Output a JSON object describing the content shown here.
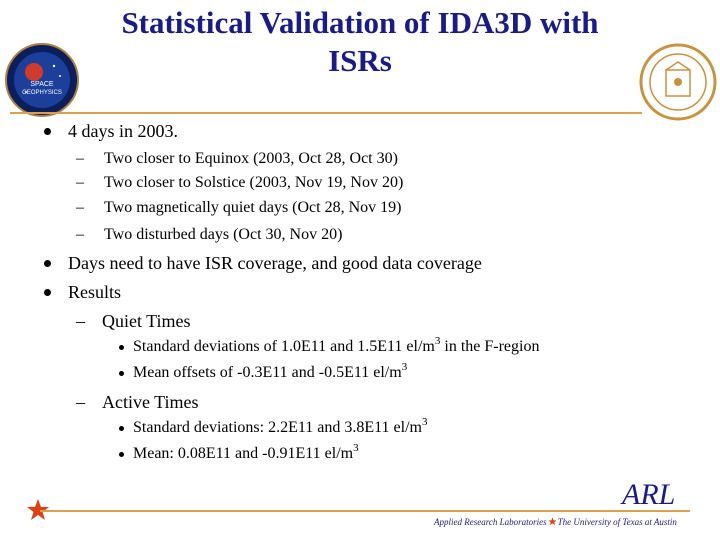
{
  "title": {
    "line1": "Statistical Validation of IDA3D with",
    "line2": "ISRs"
  },
  "logos": {
    "left_icon": "space-geophysics-logo",
    "right_icon": "ut-austin-seal",
    "left_text_line1": "SPACE",
    "left_text_line2": "GEOPHYSICS"
  },
  "bullets": {
    "b1": "4 days in 2003.",
    "b1_sub": [
      "Two closer to Equinox (2003, Oct 28, Oct 30)",
      "Two closer to Solstice (2003, Nov 19, Nov 20)",
      "Two magnetically quiet days (Oct 28, Nov 19)",
      "Two disturbed days (Oct 30, Nov 20)"
    ],
    "b2": "Days need to have ISR coverage, and good data coverage",
    "b3": "Results",
    "quiet": {
      "label": "Quiet Times",
      "item1_pre": "Standard deviations of 1.0E11 and 1.5E11 el/m",
      "item1_sup": "3",
      "item1_post": " in the F-region",
      "item2_pre": "Mean offsets of -0.3E11 and -0.5E11 el/m",
      "item2_sup": "3"
    },
    "active": {
      "label": "Active Times",
      "item1_pre": "Standard deviations: 2.2E11 and 3.8E11 el/m",
      "item1_sup": "3",
      "item2_pre": "Mean: 0.08E11 and -0.91E11 el/m",
      "item2_sup": "3"
    },
    "dash_glyph": "–"
  },
  "footer": {
    "arl": "ARL",
    "left": "Applied Research Laboratories",
    "right": "The University of Texas at Austin"
  },
  "colors": {
    "title": "#1a1a8c",
    "rule": "#d9a24e",
    "star": "#e04010"
  }
}
